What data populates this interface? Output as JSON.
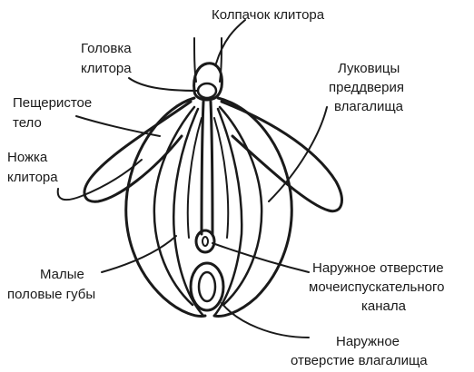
{
  "labels": {
    "clitoral_hood": "Колпачок клитора",
    "glans_l1": "Головка",
    "glans_l2": "клитора",
    "cavernous_l1": "Пещеристое",
    "cavernous_l2": "тело",
    "crus_l1": "Ножка",
    "crus_l2": "клитора",
    "bulbs_l1": "Луковицы",
    "bulbs_l2": "преддверия",
    "bulbs_l3": "влагалища",
    "labia_l1": "Малые",
    "labia_l2": "половые губы",
    "urethral_l1": "Наружное отверстие",
    "urethral_l2": "мочеиспускательного",
    "urethral_l3": "канала",
    "vaginal_l1": "Наружное",
    "vaginal_l2": "отверстие влагалища"
  }
}
